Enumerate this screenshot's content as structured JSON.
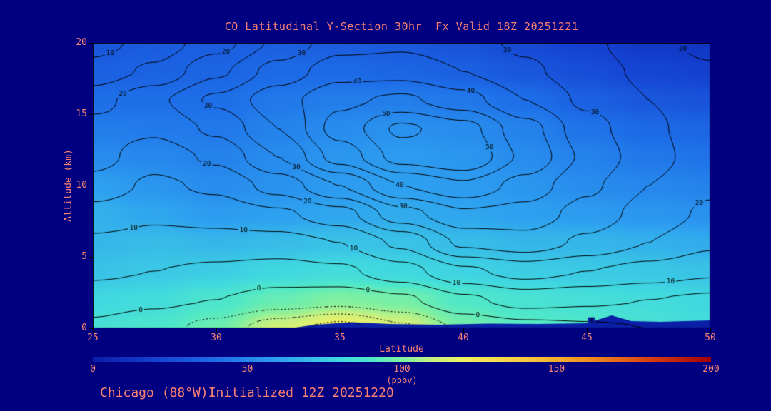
{
  "page": {
    "background": "#000080",
    "text_color": "#fa8072"
  },
  "title": "CO Latitudinal Y-Section 30hr  Fx Valid 18Z 20251221",
  "footer": "Chicago (88°W)Initialized 12Z 20251220",
  "axes": {
    "x": {
      "label": "Latitude",
      "min": 25,
      "max": 50,
      "ticks": [
        25,
        30,
        35,
        40,
        45,
        50
      ]
    },
    "y": {
      "label": "Altitude (km)",
      "min": 0,
      "max": 20,
      "ticks": [
        0,
        5,
        10,
        15,
        20
      ]
    }
  },
  "colorbar": {
    "min": 0,
    "max": 200,
    "ticks": [
      0,
      50,
      100,
      150,
      200
    ],
    "label": "(ppbv)"
  },
  "chart_data": {
    "type": "heatmap",
    "subtype": "filled-contour-cross-section-with-line-contours",
    "x_name": "latitude_deg",
    "y_name": "altitude_km",
    "fill_units": "ppbv",
    "lats": [
      25,
      27.5,
      30,
      32.5,
      35,
      37.5,
      40,
      42.5,
      45,
      47.5,
      50
    ],
    "alts": [
      0,
      2,
      4,
      6,
      8,
      10,
      12,
      14,
      16,
      18,
      20
    ],
    "fill_values_by_alt": [
      [
        85,
        88,
        96,
        112,
        122,
        114,
        98,
        92,
        90,
        86,
        82
      ],
      [
        80,
        82,
        88,
        95,
        100,
        98,
        90,
        86,
        84,
        82,
        80
      ],
      [
        72,
        74,
        76,
        80,
        82,
        80,
        78,
        76,
        75,
        74,
        72
      ],
      [
        68,
        70,
        68,
        70,
        72,
        72,
        70,
        68,
        68,
        66,
        64
      ],
      [
        66,
        62,
        58,
        60,
        62,
        64,
        62,
        60,
        58,
        56,
        54
      ],
      [
        60,
        56,
        52,
        54,
        58,
        60,
        58,
        56,
        52,
        50,
        48
      ],
      [
        52,
        50,
        48,
        52,
        56,
        58,
        56,
        52,
        48,
        44,
        42
      ],
      [
        46,
        45,
        44,
        48,
        52,
        54,
        52,
        48,
        42,
        38,
        36
      ],
      [
        40,
        40,
        40,
        44,
        46,
        46,
        44,
        40,
        34,
        30,
        28
      ],
      [
        34,
        35,
        36,
        38,
        38,
        36,
        34,
        30,
        26,
        22,
        20
      ],
      [
        30,
        32,
        33,
        34,
        33,
        31,
        28,
        24,
        20,
        16,
        14
      ]
    ],
    "line_values_by_alt": [
      [
        -1,
        -3,
        -7,
        -13,
        -17,
        -11,
        -4,
        -2,
        -1,
        0,
        0
      ],
      [
        2,
        1,
        0,
        -2,
        -3,
        -1,
        4,
        7,
        6,
        5,
        4
      ],
      [
        6,
        5,
        4,
        3,
        4,
        8,
        14,
        17,
        15,
        13,
        11
      ],
      [
        9,
        8,
        8,
        8,
        10,
        16,
        26,
        28,
        24,
        20,
        16
      ],
      [
        13,
        11,
        12,
        14,
        18,
        28,
        34,
        33,
        28,
        23,
        19
      ],
      [
        18,
        14,
        16,
        22,
        30,
        40,
        44,
        38,
        31,
        25,
        21
      ],
      [
        22,
        17,
        21,
        30,
        42,
        52,
        55,
        44,
        34,
        27,
        22
      ],
      [
        22,
        21,
        26,
        35,
        47,
        56,
        52,
        42,
        32,
        26,
        22
      ],
      [
        18,
        24,
        31,
        38,
        44,
        46,
        42,
        35,
        29,
        25,
        22
      ],
      [
        12,
        16,
        24,
        32,
        38,
        38,
        35,
        31,
        27,
        24,
        21
      ],
      [
        8,
        12,
        18,
        26,
        33,
        34,
        32,
        29,
        26,
        22,
        18
      ]
    ],
    "line_levels": {
      "min": -15,
      "max": 55,
      "interval": 5,
      "labeled": [
        0,
        10,
        20,
        30,
        40,
        50
      ],
      "negative_style": "dotted"
    },
    "colormap": [
      {
        "v": 0,
        "c": "#0a1ea8"
      },
      {
        "v": 20,
        "c": "#1440d0"
      },
      {
        "v": 40,
        "c": "#1e6ee8"
      },
      {
        "v": 60,
        "c": "#2ea0f0"
      },
      {
        "v": 80,
        "c": "#40d8e0"
      },
      {
        "v": 90,
        "c": "#50e8c8"
      },
      {
        "v": 100,
        "c": "#80f0a0"
      },
      {
        "v": 110,
        "c": "#c8f080"
      },
      {
        "v": 120,
        "c": "#f0f060"
      },
      {
        "v": 140,
        "c": "#f8c840"
      },
      {
        "v": 160,
        "c": "#f09020"
      },
      {
        "v": 180,
        "c": "#d84010"
      },
      {
        "v": 200,
        "c": "#a00000"
      }
    ],
    "surface_layer": {
      "color": "#0a1ea8",
      "points": [
        [
          33,
          0
        ],
        [
          34,
          0.25
        ],
        [
          35.5,
          0.42
        ],
        [
          37,
          0.3
        ],
        [
          39,
          0.25
        ],
        [
          41,
          0.32
        ],
        [
          43,
          0.3
        ],
        [
          45,
          0.35
        ],
        [
          46,
          0.9
        ],
        [
          46.8,
          0.5
        ],
        [
          48,
          0.45
        ],
        [
          49,
          0.5
        ],
        [
          50,
          0.55
        ],
        [
          50,
          0
        ]
      ]
    }
  }
}
